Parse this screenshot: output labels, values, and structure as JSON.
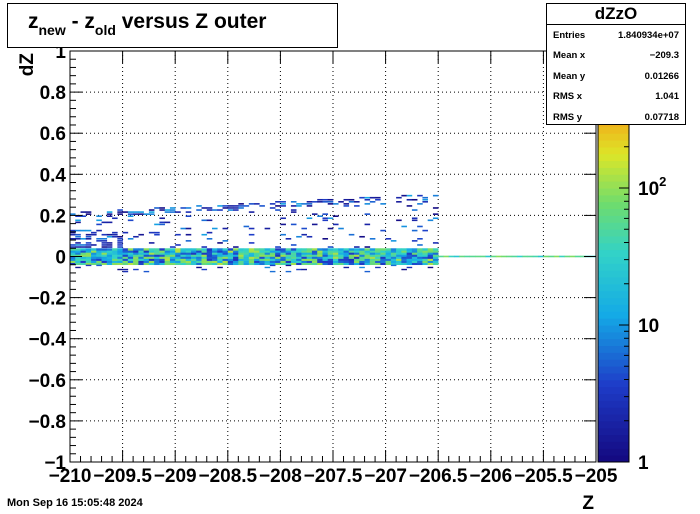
{
  "title": {
    "main": "z",
    "sub1": "new",
    "mid": " - z",
    "sub2": "old",
    "rest": " versus Z outer"
  },
  "stats": {
    "name": "dZzO",
    "rows": [
      {
        "label": "Entries",
        "value": "1.840934e+07"
      },
      {
        "label": "Mean x",
        "value": "−209.3"
      },
      {
        "label": "Mean y",
        "value": "0.01266"
      },
      {
        "label": "RMS x",
        "value": "1.041"
      },
      {
        "label": "RMS y",
        "value": "0.07718"
      }
    ]
  },
  "footer": "Mon Sep 16 15:05:48 2024",
  "chart_data": {
    "type": "heatmap",
    "title": "z_new - z_old versus Z outer",
    "xlabel": "Z",
    "ylabel": "dZ",
    "xlim": [
      -210,
      -205
    ],
    "ylim": [
      -1,
      1
    ],
    "x_tick_labels": [
      "−210",
      "−209.5",
      "−209",
      "−208.5",
      "−208",
      "−207.5",
      "−207",
      "−206.5",
      "−206",
      "−205.5",
      "−205"
    ],
    "y_tick_labels": [
      "−1",
      "−0.8",
      "−0.6",
      "−0.4",
      "−0.2",
      "0",
      "0.2",
      "0.4",
      "0.6",
      "0.8",
      "1"
    ],
    "grid": true,
    "colorbar": {
      "scale": "log",
      "range": [
        1,
        1000
      ],
      "tick_labels": [
        "1",
        "10",
        "10^2"
      ]
    },
    "colors": {
      "low": "#1a0a8c",
      "mid": "#20c8e0",
      "high": "#e83010"
    },
    "bands": [
      {
        "x_range": [
          -210,
          -206.5
        ],
        "y_center": 0.0,
        "y_halfwidth": 0.04,
        "density": "high"
      },
      {
        "x_range": [
          -206.5,
          -205
        ],
        "y_center": 0.0,
        "y_halfwidth": 0.005,
        "density": "medium"
      },
      {
        "x_range": [
          -210,
          -206.5
        ],
        "y_lower": 0.12,
        "y_upper_start": 0.21,
        "y_upper_end": 0.3,
        "density": "low"
      }
    ]
  }
}
